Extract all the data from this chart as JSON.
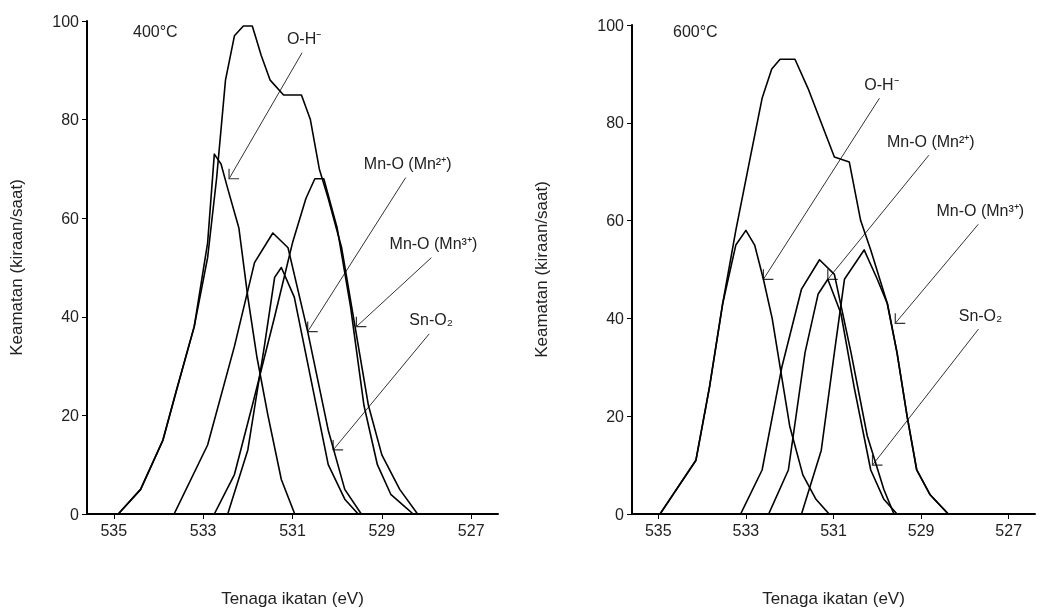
{
  "chart_data": [
    {
      "type": "line",
      "title": "400°C",
      "xlabel": "Tenaga ikatan (eV)",
      "ylabel": "Keamatan (kiraan/saat)",
      "xlim": [
        535.6,
        526.4
      ],
      "xticks": [
        535,
        533,
        531,
        529,
        527
      ],
      "ylim": [
        0,
        100
      ],
      "yticks": [
        0,
        20,
        40,
        60,
        80,
        100
      ],
      "grid": false,
      "marker": "none",
      "series": [
        {
          "color": "#000000",
          "x": [
            534.9,
            534.4,
            533.9,
            533.6,
            533.2,
            532.9,
            532.7,
            532.5,
            532.3,
            532.1,
            531.9,
            531.7,
            531.5,
            531.2,
            530.8,
            530.6,
            530.4,
            530.2,
            529.9,
            529.6,
            529.3,
            529.0,
            528.6,
            528.2
          ],
          "values": [
            0,
            5,
            15,
            25,
            38,
            52,
            68,
            88,
            97,
            99,
            99,
            93,
            88,
            85,
            85,
            80,
            70,
            64,
            54,
            38,
            22,
            12,
            5,
            0
          ]
        },
        {
          "color": "#000000",
          "x": [
            534.9,
            534.4,
            533.9,
            533.6,
            533.2,
            532.9,
            532.75,
            532.6,
            532.45,
            532.2,
            532.0,
            531.8,
            531.55,
            531.25,
            530.95
          ],
          "values": [
            0,
            5,
            15,
            25,
            38,
            55,
            73,
            71,
            66,
            58,
            44,
            32,
            20,
            7,
            0
          ]
        },
        {
          "color": "#000000",
          "x": [
            533.65,
            532.9,
            532.3,
            531.85,
            531.44,
            531.1,
            530.66,
            530.2,
            529.83,
            529.46
          ],
          "values": [
            0,
            14,
            34,
            51,
            57,
            54,
            37,
            17,
            5,
            0
          ]
        },
        {
          "color": "#000000",
          "x": [
            532.45,
            532.0,
            531.63,
            531.4,
            531.25,
            530.96,
            530.58,
            530.2,
            529.83,
            529.53
          ],
          "values": [
            0,
            13,
            34,
            48,
            50,
            44,
            27,
            10,
            3,
            0
          ]
        },
        {
          "color": "#000000",
          "x": [
            532.75,
            532.3,
            531.9,
            531.4,
            531.0,
            530.7,
            530.5,
            530.3,
            530.0,
            529.7,
            529.4,
            529.1,
            528.8,
            528.3
          ],
          "values": [
            0,
            8,
            22,
            40,
            55,
            64,
            68,
            68,
            58,
            42,
            22,
            10,
            4,
            0
          ]
        }
      ],
      "annotations": [
        {
          "text": "O-H⁻",
          "x": 532.42,
          "y": 68
        },
        {
          "text": "Mn-O (Mn²⁺)",
          "x": 530.66,
          "y": 37
        },
        {
          "text": "Mn-O (Mn³⁺)",
          "x": 529.57,
          "y": 38
        },
        {
          "text": "Sn-O₂",
          "x": 530.09,
          "y": 13
        }
      ]
    },
    {
      "type": "line",
      "title": "600°C",
      "xlabel": "Tenaga ikatan (eV)",
      "ylabel": "Keamatan (kiraan/saat)",
      "xlim": [
        535.6,
        526.4
      ],
      "xticks": [
        535,
        533,
        531,
        529,
        527
      ],
      "ylim": [
        0,
        100
      ],
      "yticks": [
        0,
        20,
        40,
        60,
        80,
        100
      ],
      "grid": false,
      "marker": "none",
      "series": [
        {
          "color": "#000000",
          "x": [
            534.96,
            534.14,
            533.83,
            533.53,
            533.23,
            532.92,
            532.63,
            532.41,
            532.22,
            531.88,
            531.58,
            531.28,
            530.98,
            530.64,
            530.38,
            530.15,
            529.77,
            529.55,
            529.32,
            529.1,
            528.8,
            528.38
          ],
          "values": [
            0,
            11,
            26,
            43,
            58,
            72,
            85,
            91,
            93,
            93,
            87,
            80,
            73,
            72,
            60,
            54,
            43,
            33,
            20,
            9,
            4,
            0
          ]
        },
        {
          "color": "#000000",
          "x": [
            534.96,
            534.14,
            533.83,
            533.53,
            533.23,
            533.0,
            532.8,
            532.6,
            532.4,
            532.0,
            531.7,
            531.4,
            531.1
          ],
          "values": [
            0,
            11,
            26,
            43,
            55,
            58,
            55,
            48,
            40,
            18,
            8,
            3,
            0
          ]
        },
        {
          "color": "#000000",
          "x": [
            533.12,
            532.63,
            532.18,
            531.73,
            531.32,
            530.98,
            530.6,
            530.23,
            529.85,
            529.62
          ],
          "values": [
            0,
            9,
            30,
            46,
            52,
            49,
            33,
            16,
            5,
            0
          ]
        },
        {
          "color": "#000000",
          "x": [
            532.48,
            532.03,
            531.65,
            531.35,
            531.13,
            530.83,
            530.53,
            530.15,
            529.85,
            529.55
          ],
          "values": [
            0,
            9,
            33,
            45,
            48,
            41,
            26,
            9,
            3,
            0
          ]
        },
        {
          "color": "#000000",
          "x": [
            531.73,
            531.28,
            530.98,
            530.75,
            530.3,
            530.0,
            529.77,
            529.55,
            529.32,
            529.1,
            528.8,
            528.38
          ],
          "values": [
            0,
            13,
            33,
            48,
            54,
            48,
            43,
            33,
            20,
            9,
            4,
            0
          ]
        }
      ],
      "annotations": [
        {
          "text": "O-H⁻",
          "x": 532.6,
          "y": 48
        },
        {
          "text": "Mn-O (Mn²⁺)",
          "x": 531.13,
          "y": 48
        },
        {
          "text": "Mn-O (Mn³⁺)",
          "x": 529.59,
          "y": 39
        },
        {
          "text": "Sn-O₂",
          "x": 530.11,
          "y": 10
        }
      ]
    }
  ]
}
